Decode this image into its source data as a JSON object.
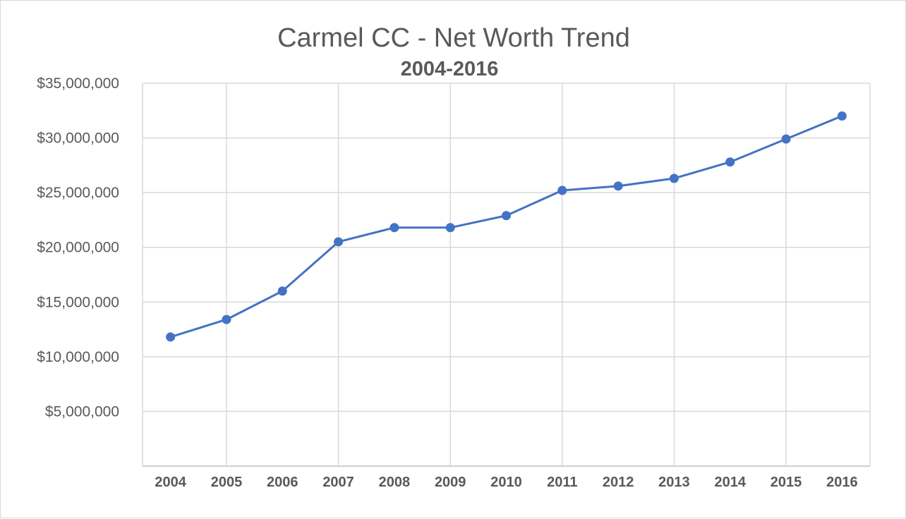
{
  "chart_data": {
    "type": "line",
    "title": "Carmel CC - Net Worth Trend",
    "subtitle": "2004-2016",
    "xlabel": "",
    "ylabel": "",
    "categories": [
      "2004",
      "2005",
      "2006",
      "2007",
      "2008",
      "2009",
      "2010",
      "2011",
      "2012",
      "2013",
      "2014",
      "2015",
      "2016"
    ],
    "x": [
      2004,
      2005,
      2006,
      2007,
      2008,
      2009,
      2010,
      2011,
      2012,
      2013,
      2014,
      2015,
      2016
    ],
    "series": [
      {
        "values": [
          11800000,
          13400000,
          16000000,
          20500000,
          21800000,
          21800000,
          22900000,
          25200000,
          25600000,
          26300000,
          27800000,
          29900000,
          32000000
        ]
      }
    ],
    "ylim": [
      0,
      35000000
    ],
    "yticks": [
      0,
      5000000,
      10000000,
      15000000,
      20000000,
      25000000,
      30000000,
      35000000
    ],
    "ytick_labels": [
      "",
      "$5,000,000",
      "$10,000,000",
      "$15,000,000",
      "$20,000,000",
      "$25,000,000",
      "$30,000,000",
      "$35,000,000"
    ],
    "grid": true,
    "legend": "none",
    "colors": {
      "line": "#4472c4",
      "grid": "#d9d9d9",
      "text": "#595959"
    }
  }
}
